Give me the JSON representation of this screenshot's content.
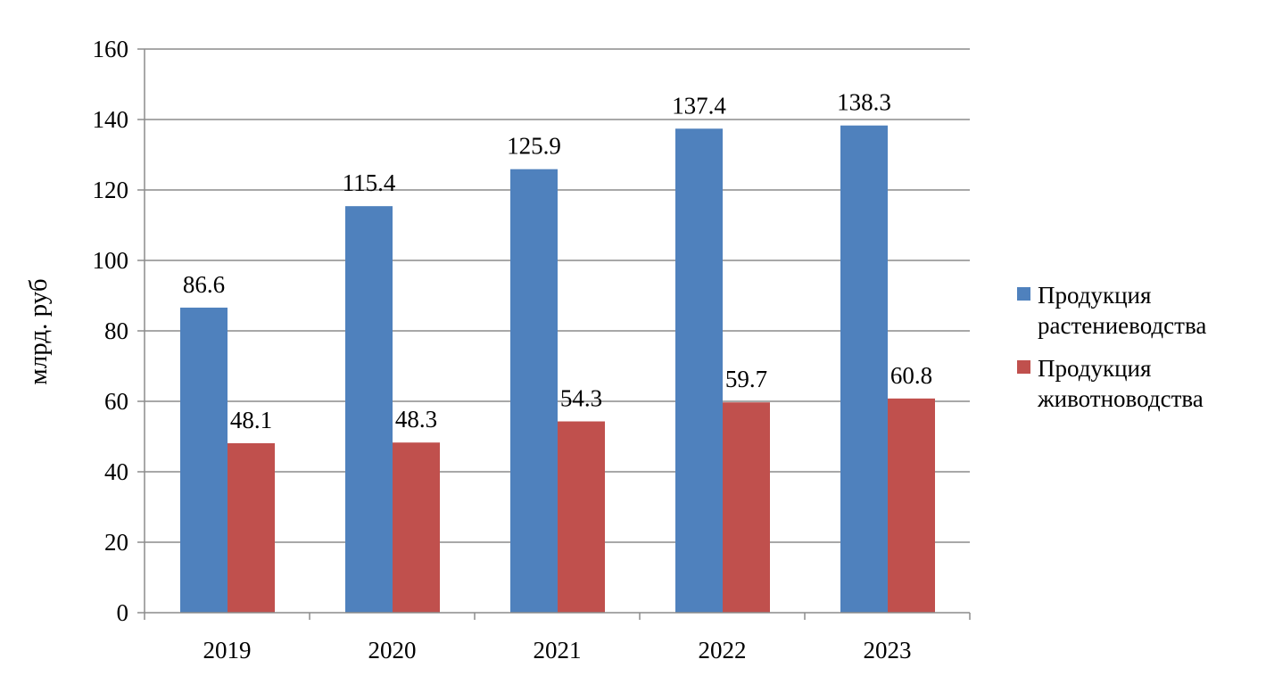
{
  "chart_data": {
    "type": "bar",
    "title": "",
    "xlabel": "",
    "ylabel": "млрд. руб",
    "categories": [
      "2019",
      "2020",
      "2021",
      "2022",
      "2023"
    ],
    "ylim": [
      0,
      160
    ],
    "yticks": [
      0,
      20,
      40,
      60,
      80,
      100,
      120,
      140,
      160
    ],
    "grid": true,
    "legend_position": "right",
    "series": [
      {
        "name": "Продукция растениеводства",
        "legend_lines": [
          "Продукция",
          "растениеводства"
        ],
        "color": "#4F81BD",
        "values": [
          86.6,
          115.4,
          125.9,
          137.4,
          138.3
        ],
        "labels": [
          "86.6",
          "115.4",
          "125.9",
          "137.4",
          "138.3"
        ]
      },
      {
        "name": "Продукция животноводства",
        "legend_lines": [
          "Продукция",
          "животноводства"
        ],
        "color": "#C0504D",
        "values": [
          48.1,
          48.3,
          54.3,
          59.7,
          60.8
        ],
        "labels": [
          "48.1",
          "48.3",
          "54.3",
          "59.7",
          "60.8"
        ]
      }
    ]
  }
}
